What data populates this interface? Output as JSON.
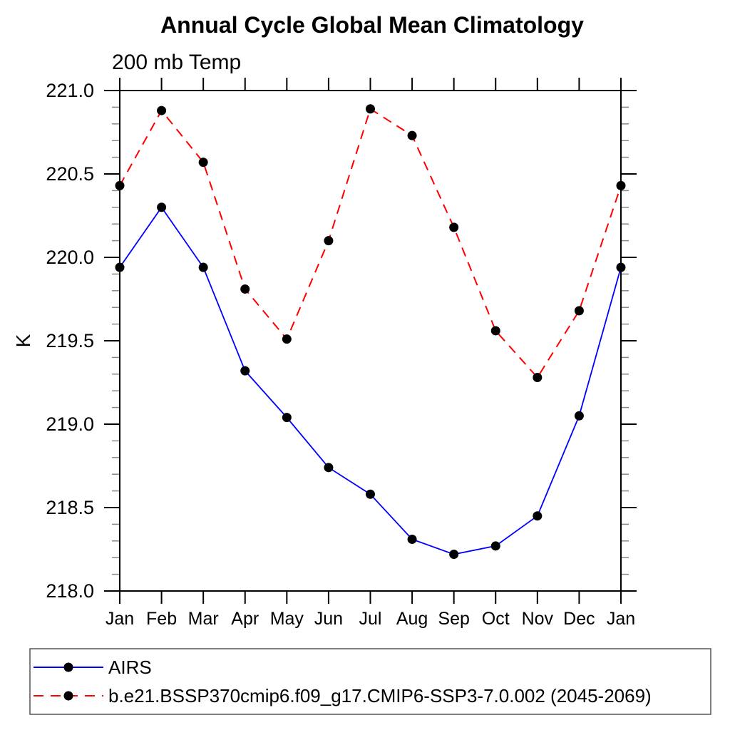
{
  "title": "Annual Cycle Global Mean Climatology",
  "subtitle": "200 mb Temp",
  "y_axis": {
    "label": "K",
    "min": 218.0,
    "max": 221.0,
    "major_step": 0.5,
    "minor_step": 0.1,
    "tick_labels": [
      "221.0",
      "220.5",
      "220.0",
      "219.5",
      "219.0",
      "218.5",
      "218.0"
    ]
  },
  "x_axis": {
    "tick_labels": [
      "Jan",
      "Feb",
      "Mar",
      "Apr",
      "May",
      "Jun",
      "Jul",
      "Aug",
      "Sep",
      "Oct",
      "Nov",
      "Dec",
      "Jan"
    ]
  },
  "legend": {
    "entries": [
      {
        "label": "AIRS",
        "line_style": "solid",
        "line_color": "#0000ff",
        "marker": "filled-circle",
        "marker_color": "#000000"
      },
      {
        "label": "b.e21.BSSP370cmip6.f09_g17.CMIP6-SSP3-7.0.002 (2045-2069)",
        "line_style": "dashed",
        "line_color": "#ff0000",
        "marker": "filled-circle",
        "marker_color": "#000000"
      }
    ]
  },
  "chart_data": {
    "type": "line",
    "title": "Annual Cycle Global Mean Climatology",
    "subtitle": "200 mb Temp",
    "xlabel": "",
    "ylabel": "K",
    "ylim": [
      218.0,
      221.0
    ],
    "grid": false,
    "legend_position": "bottom",
    "categories": [
      "Jan",
      "Feb",
      "Mar",
      "Apr",
      "May",
      "Jun",
      "Jul",
      "Aug",
      "Sep",
      "Oct",
      "Nov",
      "Dec",
      "Jan"
    ],
    "series": [
      {
        "name": "AIRS",
        "color": "#0000ff",
        "style": "solid",
        "marker": "filled-circle",
        "marker_color": "#000000",
        "values": [
          219.94,
          220.3,
          219.94,
          219.32,
          219.04,
          218.74,
          218.58,
          218.31,
          218.22,
          218.27,
          218.45,
          219.05,
          219.94
        ]
      },
      {
        "name": "b.e21.BSSP370cmip6.f09_g17.CMIP6-SSP3-7.0.002 (2045-2069)",
        "color": "#ff0000",
        "style": "dashed",
        "marker": "filled-circle",
        "marker_color": "#000000",
        "values": [
          220.43,
          220.88,
          220.57,
          219.81,
          219.51,
          220.1,
          220.89,
          220.73,
          220.18,
          219.56,
          219.28,
          219.68,
          220.43
        ]
      }
    ]
  }
}
